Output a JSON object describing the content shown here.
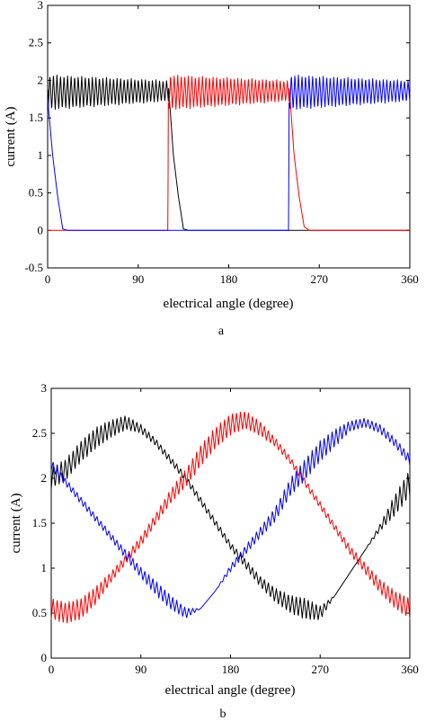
{
  "chart_data": [
    {
      "type": "line",
      "caption": "a",
      "xlabel": "electrical angle (degree)",
      "ylabel": "current (A)",
      "xlim": [
        0,
        360
      ],
      "ylim": [
        -0.5,
        3
      ],
      "xticks": [
        0,
        90,
        180,
        270,
        360
      ],
      "yticks": [
        -0.5,
        0,
        0.5,
        1,
        1.5,
        2,
        2.5,
        3
      ],
      "ytick_labels": [
        "-0.5",
        "0",
        "0.5",
        "1",
        "1.5",
        "2",
        "2.5",
        "3"
      ],
      "grid": false,
      "series": [
        {
          "color": "#000000",
          "description": "phase current conducting 0-120 with chopping ripple between about 1.6 and 2.05 A, then decays to 0 by about 135",
          "x": [
            0,
            0.5,
            120,
            125,
            130,
            135,
            140,
            360
          ],
          "y": [
            1.6,
            2.05,
            1.95,
            1.0,
            0.45,
            0.02,
            0,
            0
          ],
          "ripple": {
            "x_start": 0.5,
            "x_end": 120,
            "low_start": 1.6,
            "high_start": 2.08,
            "low_end": 1.72,
            "high_end": 2.0,
            "cycles": 34
          }
        },
        {
          "color": "#ff0000",
          "description": "zero until 120, rises to about 1.7 A, chopping 120-240, then decays to 0 by about 255",
          "x": [
            0,
            119.5,
            120,
            240,
            245,
            250,
            255,
            260,
            360
          ],
          "y": [
            0,
            0,
            1.7,
            1.95,
            1.0,
            0.45,
            0.05,
            0,
            0
          ],
          "ripple": {
            "x_start": 120.5,
            "x_end": 240,
            "low_start": 1.6,
            "high_start": 2.08,
            "low_end": 1.72,
            "high_end": 2.0,
            "cycles": 34
          }
        },
        {
          "color": "#0000ff",
          "description": "decays from about 1.75 A to 0 near 15, zero until 240, then chopping 240-360",
          "x": [
            0,
            5,
            10,
            15,
            20,
            239.5,
            240,
            360
          ],
          "y": [
            1.75,
            1.0,
            0.45,
            0.02,
            0,
            0,
            1.7,
            1.95
          ],
          "ripple": {
            "x_start": 240.5,
            "x_end": 360,
            "low_start": 1.6,
            "high_start": 2.08,
            "low_end": 1.72,
            "high_end": 2.0,
            "cycles": 34
          }
        }
      ]
    },
    {
      "type": "line",
      "caption": "b",
      "xlabel": "electrical angle (degree)",
      "ylabel": "current (A)",
      "xlim": [
        0,
        360
      ],
      "ylim": [
        0,
        3
      ],
      "xticks": [
        0,
        90,
        180,
        270,
        360
      ],
      "yticks": [
        0,
        0.5,
        1,
        1.5,
        2,
        2.5,
        3
      ],
      "ytick_labels": [
        "0",
        "0.5",
        "1",
        "1.5",
        "2",
        "2.5",
        "3"
      ],
      "grid": false,
      "series": [
        {
          "color": "#000000",
          "description": "sinusoidal-like phase current, peak about 2.62 A near 75, minimum about 0.45 A near 265, ripple on rising/peak part",
          "x": [
            0,
            15,
            30,
            45,
            60,
            75,
            90,
            105,
            120,
            135,
            150,
            165,
            180,
            195,
            210,
            225,
            240,
            255,
            270,
            285,
            300,
            315,
            330,
            345,
            360
          ],
          "y": [
            2.0,
            2.1,
            2.3,
            2.45,
            2.55,
            2.62,
            2.55,
            2.4,
            2.2,
            2.0,
            1.75,
            1.5,
            1.25,
            1.05,
            0.85,
            0.7,
            0.6,
            0.55,
            0.5,
            0.7,
            0.95,
            1.2,
            1.45,
            1.7,
            1.95
          ],
          "ripple_amp": [
            0.12,
            0.12,
            0.12,
            0.12,
            0.1,
            0.08,
            0.05,
            0.04,
            0.04,
            0.04,
            0.04,
            0.04,
            0.04,
            0.05,
            0.06,
            0.08,
            0.1,
            0.12,
            0.08,
            0,
            0,
            0,
            0.04,
            0.12,
            0.15
          ],
          "ripple_cycles": 90
        },
        {
          "color": "#ff0000",
          "description": "phase shifted by 120, peak about 2.68 A near 195, minimum about 0.45 A near 20",
          "x": [
            0,
            15,
            30,
            45,
            60,
            75,
            90,
            105,
            120,
            135,
            150,
            165,
            180,
            195,
            210,
            225,
            240,
            255,
            270,
            285,
            300,
            315,
            330,
            345,
            360
          ],
          "y": [
            0.55,
            0.5,
            0.55,
            0.7,
            0.9,
            1.1,
            1.3,
            1.55,
            1.8,
            2.0,
            2.25,
            2.45,
            2.6,
            2.65,
            2.55,
            2.4,
            2.2,
            1.95,
            1.7,
            1.45,
            1.2,
            1.0,
            0.8,
            0.65,
            0.55
          ],
          "ripple_amp": [
            0.12,
            0.12,
            0.12,
            0.1,
            0.06,
            0.05,
            0.06,
            0.06,
            0.08,
            0.1,
            0.12,
            0.12,
            0.12,
            0.1,
            0.08,
            0.05,
            0.04,
            0.04,
            0.04,
            0.04,
            0.05,
            0.06,
            0.08,
            0.1,
            0.12
          ],
          "ripple_cycles": 90
        },
        {
          "color": "#0000ff",
          "description": "phase shifted by 240, peak about 2.65 A near 310, minimum about 0.45 A near 140",
          "x": [
            0,
            15,
            30,
            45,
            60,
            75,
            90,
            105,
            120,
            135,
            150,
            165,
            180,
            195,
            210,
            225,
            240,
            255,
            270,
            285,
            300,
            315,
            330,
            345,
            360
          ],
          "y": [
            2.15,
            1.95,
            1.75,
            1.55,
            1.35,
            1.15,
            0.95,
            0.78,
            0.62,
            0.5,
            0.55,
            0.75,
            1.0,
            1.2,
            1.4,
            1.6,
            1.9,
            2.1,
            2.3,
            2.45,
            2.58,
            2.62,
            2.55,
            2.4,
            2.2
          ],
          "ripple_amp": [
            0.06,
            0.04,
            0.04,
            0.04,
            0.04,
            0.05,
            0.06,
            0.08,
            0.08,
            0.06,
            0,
            0,
            0.04,
            0.05,
            0.06,
            0.08,
            0.1,
            0.12,
            0.12,
            0.1,
            0.06,
            0.05,
            0.05,
            0.05,
            0.06
          ],
          "ripple_cycles": 90
        }
      ]
    }
  ]
}
